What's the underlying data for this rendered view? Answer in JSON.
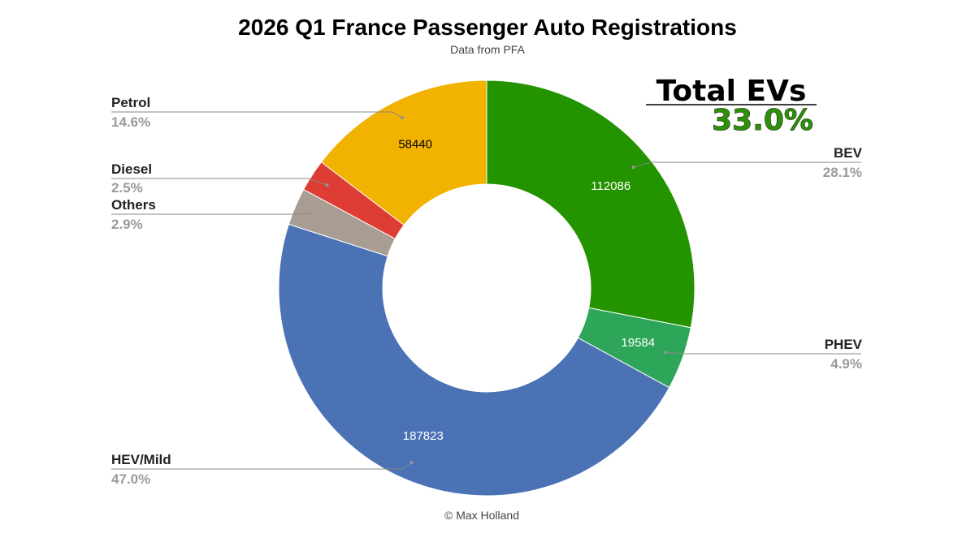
{
  "chart_data": {
    "type": "pie",
    "title": "2026 Q1 France Passenger Auto Registrations",
    "subtitle": "Data from PFA",
    "footer": "© Max Holland",
    "donut": true,
    "start_angle_deg": 0,
    "legend_placement": "labels outside with leader lines",
    "slices": [
      {
        "name": "BEV",
        "value": 112086,
        "percent_label": "28.1%",
        "color": "#249300",
        "value_text": "112086",
        "value_color": "#ffffff"
      },
      {
        "name": "PHEV",
        "value": 19584,
        "percent_label": "4.9%",
        "color": "#2ea65a",
        "value_text": "19584",
        "value_color": "#ffffff"
      },
      {
        "name": "HEV/Mild",
        "value": 187823,
        "percent_label": "47.0%",
        "color": "#4a72b5",
        "value_text": "187823",
        "value_color": "#ffffff"
      },
      {
        "name": "Others",
        "value": 11600,
        "percent_label": "2.9%",
        "color": "#a99d93"
      },
      {
        "name": "Diesel",
        "value": 10000,
        "percent_label": "2.5%",
        "color": "#dd3d35"
      },
      {
        "name": "Petrol",
        "value": 58440,
        "percent_label": "14.6%",
        "color": "#f2b200",
        "value_text": "58440",
        "value_color": "#000000"
      }
    ],
    "annotation": {
      "label": "Total EVs",
      "value": "33.0%"
    }
  }
}
